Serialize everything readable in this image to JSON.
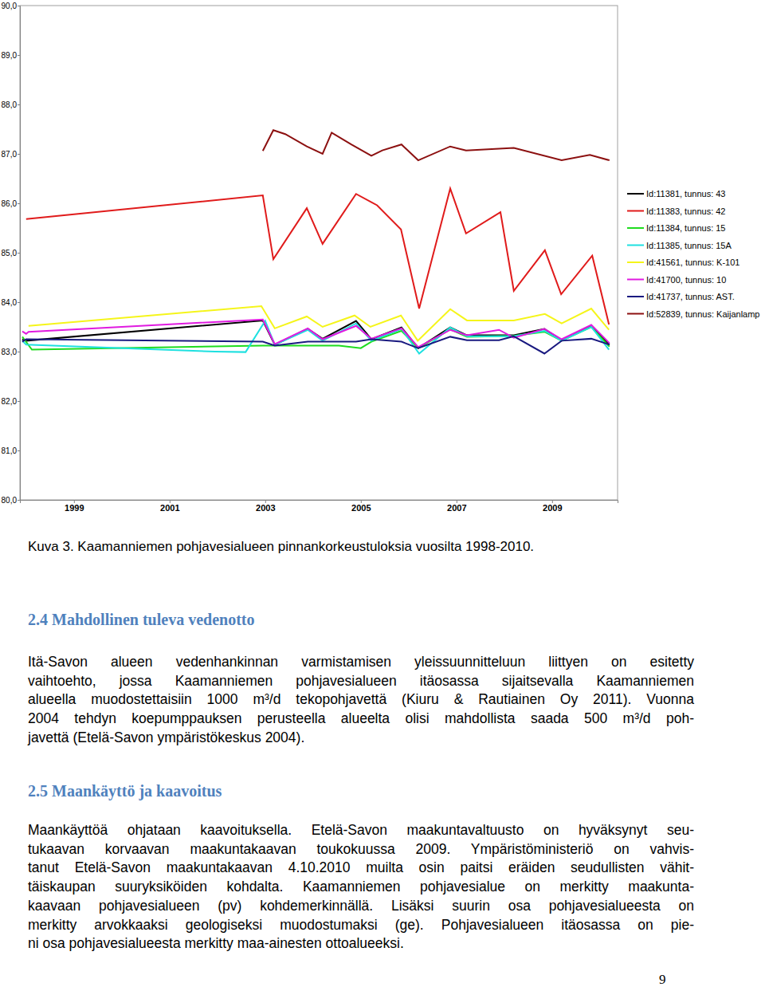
{
  "chart_data": {
    "type": "line",
    "legend": "right",
    "xlim": [
      1997.87,
      2010.37
    ],
    "xticks": [
      1999,
      2001,
      2003,
      2005,
      2007,
      2009
    ],
    "ylim": [
      80,
      90
    ],
    "yticks": [
      {
        "value": 80,
        "label": "80,0"
      },
      {
        "value": 81,
        "label": "81,0"
      },
      {
        "value": 82,
        "label": "82,0"
      },
      {
        "value": 83,
        "label": "83,0"
      },
      {
        "value": 84,
        "label": "84,0"
      },
      {
        "value": 85,
        "label": "85,0"
      },
      {
        "value": 86,
        "label": "86,0"
      },
      {
        "value": 87,
        "label": "87,0"
      },
      {
        "value": 88,
        "label": "88,0"
      },
      {
        "value": 89,
        "label": "89,0"
      },
      {
        "value": 90,
        "label": "90,0"
      }
    ],
    "series": [
      {
        "name": "Id:11381, tunnus: 43",
        "color": "#000000",
        "x": [
          1997.92,
          1998.0,
          2002.95,
          2003.2,
          2003.89,
          2004.2,
          2004.9,
          2005.22,
          2005.85,
          2006.2,
          2006.87,
          2007.22,
          2008.2,
          2008.84,
          2009.2,
          2009.82,
          2010.2
        ],
        "values": [
          83.25,
          83.22,
          83.63,
          83.14,
          83.46,
          83.26,
          83.62,
          83.25,
          83.49,
          83.07,
          83.49,
          83.33,
          83.33,
          83.46,
          83.23,
          83.52,
          83.14
        ]
      },
      {
        "name": "Id:11383, tunnus: 42",
        "color": "#e01b1b",
        "x": [
          1998.0,
          2002.95,
          2003.17,
          2003.87,
          2004.2,
          2004.9,
          2005.34,
          2005.84,
          2006.22,
          2006.87,
          2007.2,
          2007.92,
          2008.2,
          2008.85,
          2009.19,
          2009.84,
          2010.19
        ],
        "values": [
          85.68,
          86.16,
          84.87,
          85.9,
          85.18,
          86.19,
          85.96,
          85.47,
          83.87,
          86.3,
          85.39,
          85.82,
          84.23,
          85.05,
          84.16,
          84.94,
          83.55
        ]
      },
      {
        "name": "Id:11384, tunnus: 15",
        "color": "#1fdc1f",
        "x": [
          1997.92,
          1998.12,
          2002.95,
          2004.54,
          2005.0,
          2005.22,
          2005.85,
          2006.2,
          2006.87,
          2007.22,
          2008.2,
          2008.84,
          2009.2,
          2009.82,
          2010.2
        ],
        "values": [
          83.3,
          83.04,
          83.12,
          83.12,
          83.07,
          83.2,
          83.42,
          83.07,
          83.45,
          83.3,
          83.32,
          83.4,
          83.22,
          83.5,
          83.1
        ]
      },
      {
        "name": "Id:11385, tunnus: 15A",
        "color": "#1fe0e0",
        "x": [
          1997.92,
          1998.0,
          2001.95,
          2002.59,
          2003.0,
          2003.2,
          2003.89,
          2004.2,
          2004.9,
          2005.22,
          2005.85,
          2006.22,
          2006.87,
          2007.22,
          2008.2,
          2008.84,
          2009.2,
          2009.82,
          2010.19
        ],
        "values": [
          83.22,
          83.14,
          83.0,
          82.99,
          83.62,
          83.14,
          83.44,
          83.22,
          83.57,
          83.22,
          83.46,
          82.96,
          83.49,
          83.31,
          83.31,
          83.42,
          83.22,
          83.5,
          83.04
        ]
      },
      {
        "name": "Id:41561, tunnus: K-101",
        "color": "#f5f51a",
        "x": [
          1998.05,
          2002.92,
          2003.2,
          2003.87,
          2004.2,
          2004.87,
          2005.2,
          2005.84,
          2006.19,
          2006.87,
          2007.22,
          2008.2,
          2008.85,
          2009.2,
          2009.82,
          2010.19
        ],
        "values": [
          83.52,
          83.92,
          83.47,
          83.71,
          83.5,
          83.73,
          83.5,
          83.73,
          83.22,
          83.86,
          83.63,
          83.63,
          83.76,
          83.57,
          83.87,
          83.44
        ]
      },
      {
        "name": "Id:41700, tunnus: 10",
        "color": "#e01be0",
        "x": [
          1997.92,
          1998.0,
          1998.05,
          2002.95,
          2003.2,
          2003.89,
          2004.2,
          2004.9,
          2005.22,
          2005.85,
          2006.2,
          2006.87,
          2007.22,
          2007.89,
          2008.2,
          2008.84,
          2009.2,
          2009.82,
          2010.2
        ],
        "values": [
          83.41,
          83.36,
          83.4,
          83.65,
          83.15,
          83.47,
          83.25,
          83.52,
          83.26,
          83.47,
          83.09,
          83.44,
          83.33,
          83.44,
          83.28,
          83.46,
          83.25,
          83.54,
          83.17
        ]
      },
      {
        "name": "Id:41737, tunnus: AST.",
        "color": "#1a1a80",
        "x": [
          1997.92,
          1998.0,
          2002.95,
          2003.2,
          2003.89,
          2004.9,
          2005.22,
          2005.85,
          2006.2,
          2006.87,
          2007.22,
          2007.89,
          2008.2,
          2008.84,
          2009.2,
          2009.82,
          2010.2
        ],
        "values": [
          83.2,
          83.25,
          83.2,
          83.12,
          83.2,
          83.2,
          83.25,
          83.2,
          83.07,
          83.3,
          83.23,
          83.23,
          83.31,
          82.96,
          83.22,
          83.26,
          83.14
        ]
      },
      {
        "name": "Id:52839, tunnus: Kaijanlamp",
        "color": "#8c1010",
        "x": [
          2002.95,
          2003.17,
          2003.42,
          2003.87,
          2004.2,
          2004.39,
          2004.8,
          2005.22,
          2005.45,
          2005.85,
          2006.2,
          2006.87,
          2007.2,
          2008.2,
          2009.2,
          2009.79,
          2010.2
        ],
        "values": [
          87.06,
          87.48,
          87.4,
          87.15,
          87.0,
          87.43,
          87.19,
          86.96,
          87.07,
          87.19,
          86.87,
          87.15,
          87.07,
          87.12,
          86.87,
          86.98,
          86.87
        ]
      }
    ]
  },
  "caption": "Kuva 3. Kaamanniemen pohjavesialueen pinnankorkeustuloksia vuosilta 1998-2010.",
  "sections": [
    {
      "heading": "2.4 Mahdollinen tuleva vedenotto",
      "lines": [
        "Itä-Savon alueen vedenhankinnan varmistamisen yleissuunnitteluun liittyen on esitetty",
        "vaihtoehto, jossa Kaamanniemen pohjavesialueen itäosassa sijaitsevalla Kaamanniemen",
        "alueella muodostettaisiin 1000 m³/d tekopohjavettä (Kiuru & Rautiainen Oy 2011). Vuonna",
        "2004 tehdyn koepumppauksen perusteella alueelta olisi mahdollista saada 500 m³/d poh-",
        "javettä (Etelä-Savon ympäristökeskus 2004)."
      ]
    },
    {
      "heading": "2.5 Maankäyttö ja kaavoitus",
      "lines": [
        "Maankäyttöä ohjataan kaavoituksella. Etelä-Savon maakuntavaltuusto on hyväksynyt seu-",
        "tukaavan korvaavan maakuntakaavan toukokuussa 2009. Ympäristöministeriö on vahvis-",
        "tanut Etelä-Savon maakuntakaavan 4.10.2010 muilta osin paitsi eräiden seudullisten vähit-",
        "täiskaupan suuryksiköiden kohdalta. Kaamanniemen pohjavesialue on merkitty maakunta-",
        "kaavaan pohjavesialueen (pv) kohdemerkinnällä. Lisäksi suurin osa pohjavesialueesta on",
        "merkitty arvokkaaksi geologiseksi muodostumaksi (ge). Pohjavesialueen itäosassa on pie-",
        "ni osa pohjavesialueesta merkitty maa-ainesten ottoalueeksi."
      ]
    }
  ],
  "page_number": "9"
}
